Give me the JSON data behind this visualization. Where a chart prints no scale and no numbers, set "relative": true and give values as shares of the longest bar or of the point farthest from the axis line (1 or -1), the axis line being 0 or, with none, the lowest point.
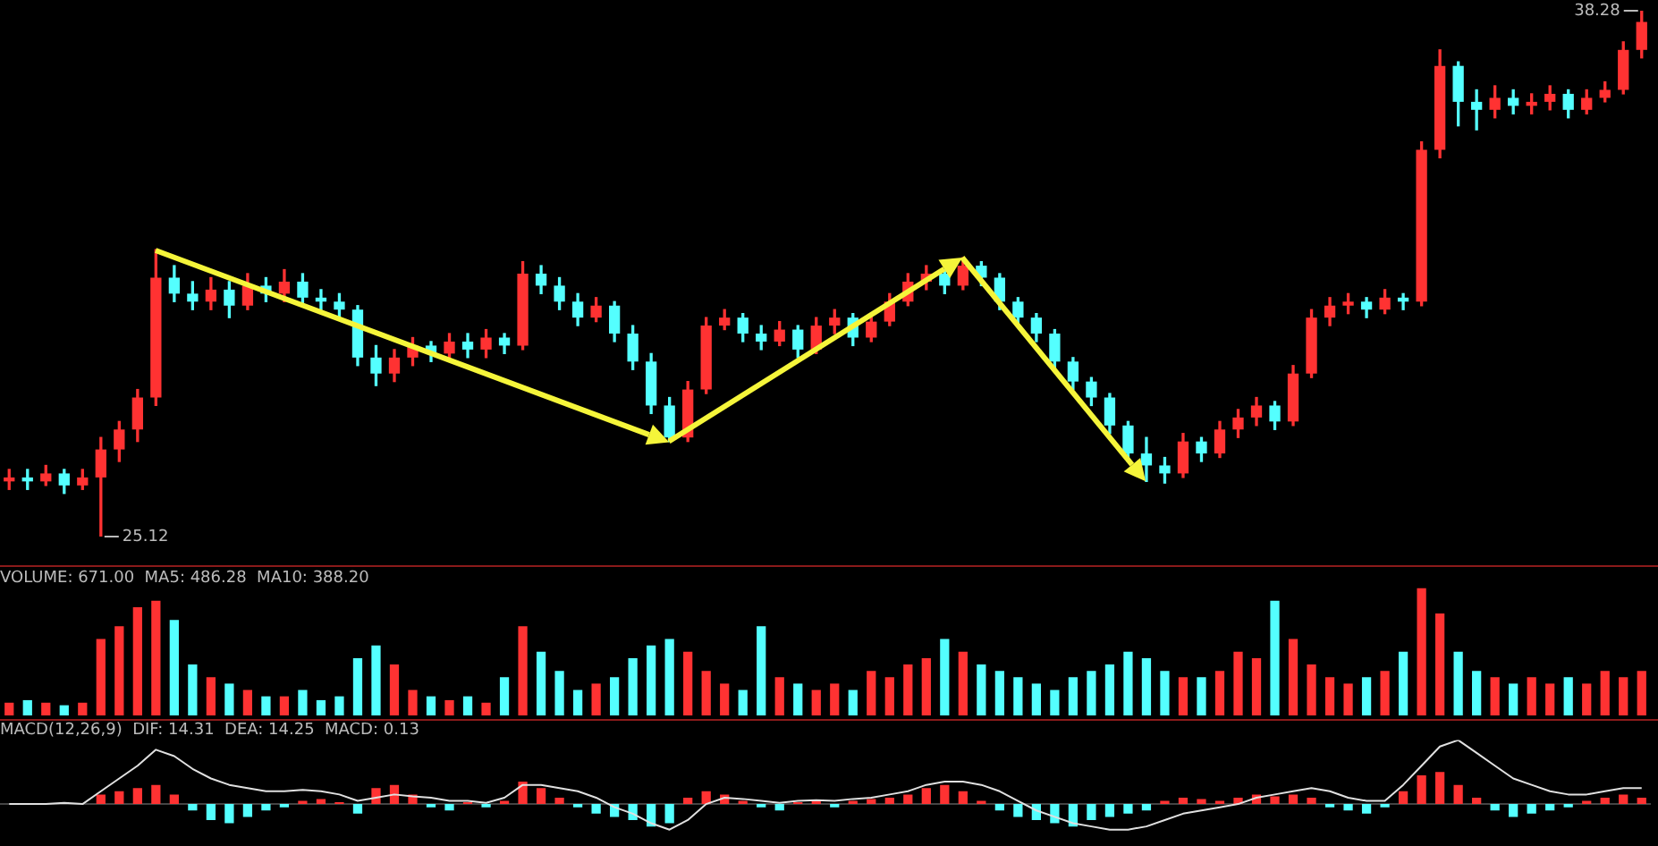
{
  "chart_data": [
    {
      "type": "candlestick",
      "categories": [
        null,
        null,
        null,
        null,
        null,
        null,
        null,
        null,
        null,
        null,
        null,
        null,
        null,
        null,
        null,
        null,
        null,
        null,
        null,
        null,
        null,
        null,
        null,
        null,
        null,
        null,
        null,
        null,
        null,
        null,
        null,
        null,
        null,
        null,
        null,
        null,
        null,
        null,
        null,
        null,
        null,
        null,
        null,
        null,
        null,
        null,
        null,
        null,
        null,
        null,
        null,
        null,
        null,
        null,
        null,
        null,
        null,
        null,
        null,
        null,
        null,
        null,
        null,
        null,
        null,
        null,
        null,
        null,
        null,
        null,
        null,
        null,
        null,
        null,
        null,
        null,
        null,
        null,
        null,
        null,
        null,
        null,
        null,
        null,
        null,
        null,
        null,
        null,
        null,
        null
      ],
      "ohlc": [
        [
          26.5,
          26.8,
          26.3,
          26.6
        ],
        [
          26.6,
          26.8,
          26.3,
          26.5
        ],
        [
          26.5,
          26.9,
          26.4,
          26.7
        ],
        [
          26.7,
          26.8,
          26.2,
          26.4
        ],
        [
          26.4,
          26.8,
          26.3,
          26.6
        ],
        [
          26.6,
          27.6,
          25.12,
          27.3
        ],
        [
          27.3,
          28.0,
          27.0,
          27.8
        ],
        [
          27.8,
          28.8,
          27.5,
          28.6
        ],
        [
          28.6,
          32.3,
          28.4,
          31.6
        ],
        [
          31.6,
          31.9,
          31.0,
          31.2
        ],
        [
          31.2,
          31.5,
          30.8,
          31.0
        ],
        [
          31.0,
          31.6,
          30.8,
          31.3
        ],
        [
          31.3,
          31.5,
          30.6,
          30.9
        ],
        [
          30.9,
          31.7,
          30.8,
          31.4
        ],
        [
          31.4,
          31.6,
          31.0,
          31.2
        ],
        [
          31.2,
          31.8,
          31.0,
          31.5
        ],
        [
          31.5,
          31.7,
          30.9,
          31.1
        ],
        [
          31.1,
          31.3,
          30.8,
          31.0
        ],
        [
          31.0,
          31.2,
          30.6,
          30.8
        ],
        [
          30.8,
          30.9,
          29.4,
          29.6
        ],
        [
          29.6,
          29.9,
          28.9,
          29.2
        ],
        [
          29.2,
          29.8,
          29.0,
          29.6
        ],
        [
          29.6,
          30.1,
          29.4,
          29.9
        ],
        [
          29.9,
          30.0,
          29.5,
          29.7
        ],
        [
          29.7,
          30.2,
          29.5,
          30.0
        ],
        [
          30.0,
          30.2,
          29.6,
          29.8
        ],
        [
          29.8,
          30.3,
          29.6,
          30.1
        ],
        [
          30.1,
          30.2,
          29.7,
          29.9
        ],
        [
          29.9,
          32.0,
          29.8,
          31.7
        ],
        [
          31.7,
          31.9,
          31.2,
          31.4
        ],
        [
          31.4,
          31.6,
          30.8,
          31.0
        ],
        [
          31.0,
          31.2,
          30.4,
          30.6
        ],
        [
          30.6,
          31.1,
          30.5,
          30.9
        ],
        [
          30.9,
          31.0,
          30.0,
          30.2
        ],
        [
          30.2,
          30.4,
          29.3,
          29.5
        ],
        [
          29.5,
          29.7,
          28.2,
          28.4
        ],
        [
          28.4,
          28.6,
          27.5,
          27.6
        ],
        [
          27.6,
          29.0,
          27.5,
          28.8
        ],
        [
          28.8,
          30.6,
          28.7,
          30.4
        ],
        [
          30.4,
          30.8,
          30.3,
          30.6
        ],
        [
          30.6,
          30.7,
          30.0,
          30.2
        ],
        [
          30.2,
          30.4,
          29.8,
          30.0
        ],
        [
          30.0,
          30.5,
          29.9,
          30.3
        ],
        [
          30.3,
          30.4,
          29.6,
          29.8
        ],
        [
          29.8,
          30.6,
          29.7,
          30.4
        ],
        [
          30.4,
          30.8,
          30.2,
          30.6
        ],
        [
          30.6,
          30.7,
          29.9,
          30.1
        ],
        [
          30.1,
          30.7,
          30.0,
          30.5
        ],
        [
          30.5,
          31.2,
          30.4,
          31.0
        ],
        [
          31.0,
          31.7,
          30.9,
          31.5
        ],
        [
          31.5,
          31.9,
          31.3,
          31.7
        ],
        [
          31.7,
          31.8,
          31.2,
          31.4
        ],
        [
          31.4,
          32.1,
          31.3,
          31.9
        ],
        [
          31.9,
          32.0,
          31.4,
          31.6
        ],
        [
          31.6,
          31.7,
          30.8,
          31.0
        ],
        [
          31.0,
          31.1,
          30.4,
          30.6
        ],
        [
          30.6,
          30.7,
          30.0,
          30.2
        ],
        [
          30.2,
          30.3,
          29.3,
          29.5
        ],
        [
          29.5,
          29.6,
          28.8,
          29.0
        ],
        [
          29.0,
          29.1,
          28.4,
          28.6
        ],
        [
          28.6,
          28.7,
          27.7,
          27.9
        ],
        [
          27.9,
          28.0,
          27.0,
          27.2
        ],
        [
          27.2,
          27.6,
          26.5,
          26.9
        ],
        [
          26.9,
          27.1,
          26.46,
          26.7
        ],
        [
          26.7,
          27.7,
          26.6,
          27.5
        ],
        [
          27.5,
          27.6,
          27.0,
          27.2
        ],
        [
          27.2,
          28.0,
          27.1,
          27.8
        ],
        [
          27.8,
          28.3,
          27.6,
          28.1
        ],
        [
          28.1,
          28.6,
          27.9,
          28.4
        ],
        [
          28.4,
          28.5,
          27.8,
          28.0
        ],
        [
          28.0,
          29.4,
          27.9,
          29.2
        ],
        [
          29.2,
          30.8,
          29.1,
          30.6
        ],
        [
          30.6,
          31.1,
          30.4,
          30.9
        ],
        [
          30.9,
          31.2,
          30.7,
          31.0
        ],
        [
          31.0,
          31.1,
          30.6,
          30.8
        ],
        [
          30.8,
          31.3,
          30.7,
          31.1
        ],
        [
          31.1,
          31.2,
          30.8,
          31.0
        ],
        [
          31.0,
          35.0,
          30.9,
          34.8
        ],
        [
          34.8,
          37.3,
          34.6,
          36.9
        ],
        [
          36.9,
          37.0,
          35.4,
          36.0
        ],
        [
          36.0,
          36.3,
          35.3,
          35.8
        ],
        [
          35.8,
          36.4,
          35.6,
          36.1
        ],
        [
          36.1,
          36.3,
          35.7,
          35.9
        ],
        [
          35.9,
          36.2,
          35.7,
          36.0
        ],
        [
          36.0,
          36.4,
          35.8,
          36.2
        ],
        [
          36.2,
          36.3,
          35.6,
          35.8
        ],
        [
          35.8,
          36.3,
          35.7,
          36.1
        ],
        [
          36.1,
          36.5,
          36.0,
          36.3
        ],
        [
          36.3,
          37.5,
          36.2,
          37.3
        ],
        [
          37.3,
          38.28,
          37.1,
          38.0
        ]
      ],
      "annotations": [
        "38.28",
        "25.12"
      ]
    },
    {
      "type": "bar",
      "relative": true,
      "title": "VOLUME: 671.00  MA5: 486.28  MA10: 388.20",
      "colors": [
        "#ff3232",
        "#54ffff",
        "#ff3232",
        "#54ffff",
        "#ff3232",
        "#ff3232",
        "#ff3232",
        "#ff3232",
        "#ff3232",
        "#54ffff",
        "#54ffff",
        "#ff3232",
        "#54ffff",
        "#ff3232",
        "#54ffff",
        "#ff3232",
        "#54ffff",
        "#54ffff",
        "#54ffff",
        "#54ffff",
        "#54ffff",
        "#ff3232",
        "#ff3232",
        "#54ffff",
        "#ff3232",
        "#54ffff",
        "#ff3232",
        "#54ffff",
        "#ff3232",
        "#54ffff",
        "#54ffff",
        "#54ffff",
        "#ff3232",
        "#54ffff",
        "#54ffff",
        "#54ffff",
        "#54ffff",
        "#ff3232",
        "#ff3232",
        "#ff3232",
        "#54ffff",
        "#54ffff",
        "#ff3232",
        "#54ffff",
        "#ff3232",
        "#ff3232",
        "#54ffff",
        "#ff3232",
        "#ff3232",
        "#ff3232",
        "#ff3232",
        "#54ffff",
        "#ff3232",
        "#54ffff",
        "#54ffff",
        "#54ffff",
        "#54ffff",
        "#54ffff",
        "#54ffff",
        "#54ffff",
        "#54ffff",
        "#54ffff",
        "#54ffff",
        "#54ffff",
        "#ff3232",
        "#54ffff",
        "#ff3232",
        "#ff3232",
        "#ff3232",
        "#54ffff",
        "#ff3232",
        "#ff3232",
        "#ff3232",
        "#ff3232",
        "#54ffff",
        "#ff3232",
        "#54ffff",
        "#ff3232",
        "#ff3232",
        "#54ffff",
        "#54ffff",
        "#ff3232",
        "#54ffff",
        "#ff3232",
        "#ff3232",
        "#54ffff",
        "#ff3232",
        "#ff3232",
        "#ff3232",
        "#ff3232"
      ],
      "categories": [
        null,
        null,
        null,
        null,
        null,
        null,
        null,
        null,
        null,
        null,
        null,
        null,
        null,
        null,
        null,
        null,
        null,
        null,
        null,
        null,
        null,
        null,
        null,
        null,
        null,
        null,
        null,
        null,
        null,
        null,
        null,
        null,
        null,
        null,
        null,
        null,
        null,
        null,
        null,
        null,
        null,
        null,
        null,
        null,
        null,
        null,
        null,
        null,
        null,
        null,
        null,
        null,
        null,
        null,
        null,
        null,
        null,
        null,
        null,
        null,
        null,
        null,
        null,
        null,
        null,
        null,
        null,
        null,
        null,
        null,
        null,
        null,
        null,
        null,
        null,
        null,
        null,
        null,
        null,
        null,
        null,
        null,
        null,
        null,
        null,
        null,
        null,
        null,
        null,
        null
      ],
      "values": [
        0.1,
        0.12,
        0.1,
        0.08,
        0.1,
        0.6,
        0.7,
        0.85,
        0.9,
        0.75,
        0.4,
        0.3,
        0.25,
        0.2,
        0.15,
        0.15,
        0.2,
        0.12,
        0.15,
        0.45,
        0.55,
        0.4,
        0.2,
        0.15,
        0.12,
        0.15,
        0.1,
        0.3,
        0.7,
        0.5,
        0.35,
        0.2,
        0.25,
        0.3,
        0.45,
        0.55,
        0.6,
        0.5,
        0.35,
        0.25,
        0.2,
        0.7,
        0.3,
        0.25,
        0.2,
        0.25,
        0.2,
        0.35,
        0.3,
        0.4,
        0.45,
        0.6,
        0.5,
        0.4,
        0.35,
        0.3,
        0.25,
        0.2,
        0.3,
        0.35,
        0.4,
        0.5,
        0.45,
        0.35,
        0.3,
        0.3,
        0.35,
        0.5,
        0.45,
        0.9,
        0.6,
        0.4,
        0.3,
        0.25,
        0.3,
        0.35,
        0.5,
        1,
        0.8,
        0.5,
        0.35,
        0.3,
        0.25,
        0.3,
        0.25,
        0.3,
        0.25,
        0.35,
        0.3,
        0.35
      ]
    },
    {
      "type": "bar",
      "relative": true,
      "title": "MACD(12,26,9)  DIF: 14.31  DEA: 14.25  MACD: 0.13",
      "categories": [
        null,
        null,
        null,
        null,
        null,
        null,
        null,
        null,
        null,
        null,
        null,
        null,
        null,
        null,
        null,
        null,
        null,
        null,
        null,
        null,
        null,
        null,
        null,
        null,
        null,
        null,
        null,
        null,
        null,
        null,
        null,
        null,
        null,
        null,
        null,
        null,
        null,
        null,
        null,
        null,
        null,
        null,
        null,
        null,
        null,
        null,
        null,
        null,
        null,
        null,
        null,
        null,
        null,
        null,
        null,
        null,
        null,
        null,
        null,
        null,
        null,
        null,
        null,
        null,
        null,
        null,
        null,
        null,
        null,
        null,
        null,
        null,
        null,
        null,
        null,
        null,
        null,
        null,
        null,
        null,
        null,
        null,
        null,
        null,
        null,
        null,
        null,
        null,
        null,
        null
      ],
      "series": [
        {
          "type": "bar",
          "colors": [
            "#ff3232",
            "#ff3232",
            "#54ffff",
            "#ff3232",
            "#ff3232",
            "#ff3232",
            "#ff3232",
            "#ff3232",
            "#ff3232",
            "#ff3232",
            "#54ffff",
            "#54ffff",
            "#54ffff",
            "#54ffff",
            "#54ffff",
            "#54ffff",
            "#ff3232",
            "#ff3232",
            "#ff3232",
            "#54ffff",
            "#ff3232",
            "#ff3232",
            "#ff3232",
            "#54ffff",
            "#54ffff",
            "#ff3232",
            "#54ffff",
            "#ff3232",
            "#ff3232",
            "#ff3232",
            "#ff3232",
            "#54ffff",
            "#54ffff",
            "#54ffff",
            "#54ffff",
            "#54ffff",
            "#54ffff",
            "#ff3232",
            "#ff3232",
            "#ff3232",
            "#ff3232",
            "#54ffff",
            "#54ffff",
            "#ff3232",
            "#ff3232",
            "#54ffff",
            "#ff3232",
            "#ff3232",
            "#ff3232",
            "#ff3232",
            "#ff3232",
            "#ff3232",
            "#ff3232",
            "#ff3232",
            "#54ffff",
            "#54ffff",
            "#54ffff",
            "#54ffff",
            "#54ffff",
            "#54ffff",
            "#54ffff",
            "#54ffff",
            "#54ffff",
            "#ff3232",
            "#ff3232",
            "#ff3232",
            "#ff3232",
            "#ff3232",
            "#ff3232",
            "#ff3232",
            "#ff3232",
            "#ff3232",
            "#54ffff",
            "#54ffff",
            "#54ffff",
            "#54ffff",
            "#ff3232",
            "#ff3232",
            "#ff3232",
            "#ff3232",
            "#ff3232",
            "#54ffff",
            "#54ffff",
            "#54ffff",
            "#54ffff",
            "#54ffff",
            "#ff3232",
            "#ff3232",
            "#ff3232",
            "#ff3232"
          ],
          "values": [
            0,
            null,
            null,
            null,
            0,
            0.15,
            0.2,
            0.25,
            0.3,
            0.15,
            -0.1,
            -0.25,
            -0.3,
            -0.2,
            -0.1,
            -0.05,
            0.05,
            0.08,
            0.03,
            -0.15,
            0.25,
            0.3,
            0.15,
            -0.05,
            -0.1,
            0.03,
            -0.05,
            0.05,
            0.35,
            0.25,
            0.1,
            -0.05,
            -0.15,
            -0.2,
            -0.25,
            -0.35,
            -0.3,
            0.1,
            0.2,
            0.15,
            0.05,
            -0.05,
            -0.1,
            0.03,
            0.05,
            -0.05,
            0.05,
            0.08,
            0.1,
            0.15,
            0.25,
            0.3,
            0.2,
            0.05,
            -0.1,
            -0.2,
            -0.25,
            -0.3,
            -0.35,
            -0.25,
            -0.2,
            -0.15,
            -0.1,
            0.05,
            0.1,
            0.08,
            0.05,
            0.1,
            0.15,
            0.12,
            0.15,
            0.1,
            -0.05,
            -0.1,
            -0.15,
            -0.05,
            0.2,
            0.45,
            0.5,
            0.3,
            0.1,
            -0.1,
            -0.2,
            -0.15,
            -0.1,
            -0.05,
            0.05,
            0.1,
            0.15,
            0.1
          ]
        },
        {
          "type": "line",
          "color": "#e0e0e0",
          "values": [
            0,
            0,
            0,
            0.02,
            0,
            0.2,
            0.4,
            0.6,
            0.85,
            0.75,
            0.55,
            0.4,
            0.3,
            0.25,
            0.2,
            0.2,
            0.22,
            0.2,
            0.15,
            0.05,
            0.1,
            0.15,
            0.12,
            0.1,
            0.05,
            0.05,
            0.02,
            0.1,
            0.3,
            0.3,
            0.25,
            0.2,
            0.1,
            -0.05,
            -0.15,
            -0.3,
            -0.4,
            -0.25,
            0,
            0.1,
            0.08,
            0.05,
            0.02,
            0.05,
            0.06,
            0.05,
            0.08,
            0.1,
            0.15,
            0.2,
            0.3,
            0.35,
            0.35,
            0.3,
            0.2,
            0.05,
            -0.1,
            -0.2,
            -0.3,
            -0.35,
            -0.4,
            -0.4,
            -0.35,
            -0.25,
            -0.15,
            -0.1,
            -0.05,
            0,
            0.1,
            0.15,
            0.2,
            0.25,
            0.2,
            0.1,
            0.05,
            0.05,
            0.3,
            0.6,
            0.9,
            1,
            0.8,
            0.6,
            0.4,
            0.3,
            0.2,
            0.15,
            0.15,
            0.2,
            0.25,
            0.25
          ]
        }
      ]
    }
  ]
}
